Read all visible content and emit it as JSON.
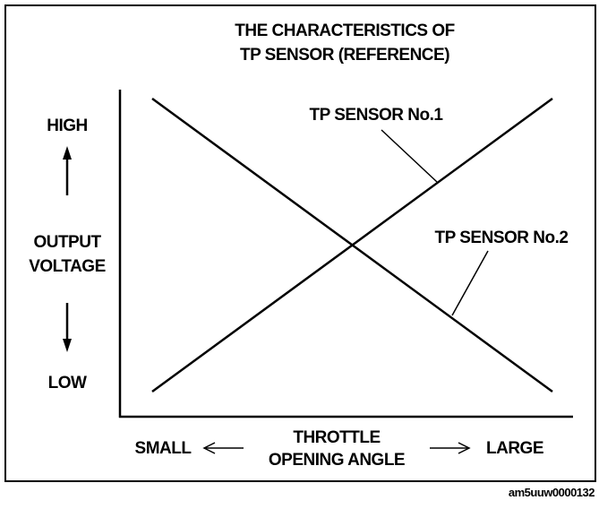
{
  "chart_data": {
    "type": "line",
    "title": [
      "THE CHARACTERISTICS OF",
      "TP SENSOR (REFERENCE)"
    ],
    "xlabel": [
      "THROTTLE",
      "OPENING ANGLE"
    ],
    "x_ends": {
      "low": "SMALL",
      "high": "LARGE"
    },
    "ylabel": [
      "OUTPUT",
      "VOLTAGE"
    ],
    "y_ends": {
      "low": "LOW",
      "high": "HIGH"
    },
    "x": [
      "SMALL",
      "LARGE"
    ],
    "series": [
      {
        "name": "TP SENSOR No.1",
        "values": [
          "LOW",
          "HIGH"
        ]
      },
      {
        "name": "TP SENSOR No.2",
        "values": [
          "HIGH",
          "LOW"
        ]
      }
    ],
    "grid": false,
    "line_color": "#000000"
  },
  "caption": "am5uuw0000132"
}
